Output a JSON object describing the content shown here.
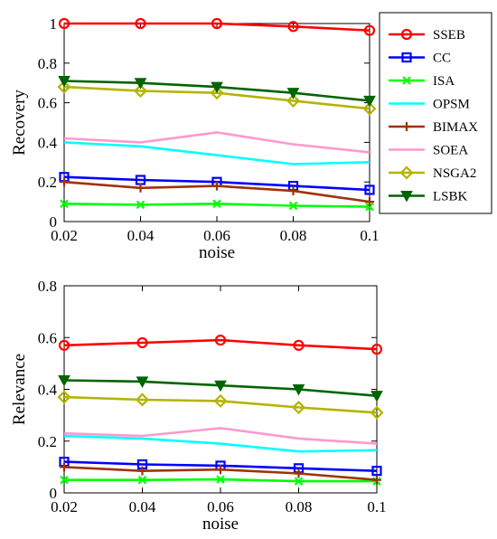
{
  "chart_data": [
    {
      "type": "line",
      "x": [
        0.02,
        0.04,
        0.06,
        0.08,
        0.1
      ],
      "xtick_labels": [
        "0.02",
        "0.04",
        "0.06",
        "0.08",
        "0.1"
      ],
      "ytick_labels": [
        "0",
        "0.2",
        "0.4",
        "0.6",
        "0.8",
        "1"
      ],
      "xlabel": "noise",
      "ylabel": "Recovery",
      "xlim": [
        0.02,
        0.1
      ],
      "ylim": [
        0,
        1
      ],
      "grid": false,
      "legend_position": "right",
      "series": [
        {
          "name": "SSEB",
          "color": "#ff0000",
          "marker": "circle",
          "values": [
            1.0,
            1.0,
            1.0,
            0.985,
            0.965
          ]
        },
        {
          "name": "CC",
          "color": "#0000ff",
          "marker": "square",
          "values": [
            0.225,
            0.21,
            0.2,
            0.18,
            0.16
          ]
        },
        {
          "name": "ISA",
          "color": "#00ff00",
          "marker": "x",
          "values": [
            0.09,
            0.085,
            0.09,
            0.08,
            0.075
          ]
        },
        {
          "name": "OPSM",
          "color": "#00ffff",
          "marker": "none",
          "values": [
            0.4,
            0.38,
            0.335,
            0.29,
            0.3
          ]
        },
        {
          "name": "BIMAX",
          "color": "#a0320a",
          "marker": "plus",
          "values": [
            0.2,
            0.17,
            0.18,
            0.155,
            0.1
          ]
        },
        {
          "name": "SOEA",
          "color": "#ff99cc",
          "marker": "none",
          "values": [
            0.42,
            0.4,
            0.45,
            0.39,
            0.35
          ]
        },
        {
          "name": "NSGA2",
          "color": "#b4b400",
          "marker": "diamond",
          "values": [
            0.68,
            0.66,
            0.65,
            0.61,
            0.57
          ]
        },
        {
          "name": "LSBK",
          "color": "#006400",
          "marker": "triangle",
          "values": [
            0.71,
            0.7,
            0.68,
            0.65,
            0.61
          ]
        }
      ]
    },
    {
      "type": "line",
      "x": [
        0.02,
        0.04,
        0.06,
        0.08,
        0.1
      ],
      "xtick_labels": [
        "0.02",
        "0.04",
        "0.06",
        "0.08",
        "0.1"
      ],
      "ytick_labels": [
        "0",
        "0.2",
        "0.4",
        "0.6",
        "0.8"
      ],
      "xlabel": "noise",
      "ylabel": "Relevance",
      "xlim": [
        0.02,
        0.1
      ],
      "ylim": [
        0,
        0.8
      ],
      "grid": false,
      "series": [
        {
          "name": "SSEB",
          "color": "#ff0000",
          "marker": "circle",
          "values": [
            0.57,
            0.58,
            0.59,
            0.57,
            0.555
          ]
        },
        {
          "name": "CC",
          "color": "#0000ff",
          "marker": "square",
          "values": [
            0.12,
            0.11,
            0.105,
            0.095,
            0.085
          ]
        },
        {
          "name": "ISA",
          "color": "#00ff00",
          "marker": "x",
          "values": [
            0.05,
            0.05,
            0.052,
            0.045,
            0.045
          ]
        },
        {
          "name": "OPSM",
          "color": "#00ffff",
          "marker": "none",
          "values": [
            0.22,
            0.21,
            0.19,
            0.16,
            0.165
          ]
        },
        {
          "name": "BIMAX",
          "color": "#a0320a",
          "marker": "plus",
          "values": [
            0.1,
            0.085,
            0.09,
            0.075,
            0.05
          ]
        },
        {
          "name": "SOEA",
          "color": "#ff99cc",
          "marker": "none",
          "values": [
            0.23,
            0.22,
            0.25,
            0.21,
            0.19
          ]
        },
        {
          "name": "NSGA2",
          "color": "#b4b400",
          "marker": "diamond",
          "values": [
            0.37,
            0.36,
            0.355,
            0.33,
            0.31
          ]
        },
        {
          "name": "LSBK",
          "color": "#006400",
          "marker": "triangle",
          "values": [
            0.435,
            0.43,
            0.415,
            0.4,
            0.375
          ]
        }
      ]
    }
  ]
}
